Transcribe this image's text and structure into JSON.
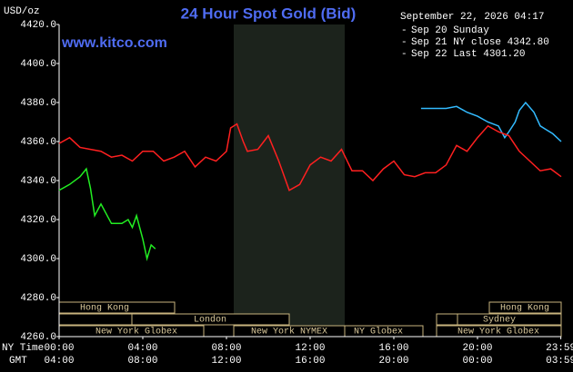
{
  "chart_data": {
    "type": "line",
    "unit": "USD/oz",
    "title": "24 Hour Spot Gold (Bid)",
    "website": "www.kitco.com",
    "timestamp": "September 22, 2026 04:17",
    "xlim": [
      0,
      24
    ],
    "xticks": [
      {
        "value": 0,
        "label": "00:00"
      },
      {
        "value": 4,
        "label": "04:00"
      },
      {
        "value": 8,
        "label": "08:00"
      },
      {
        "value": 12,
        "label": "12:00"
      },
      {
        "value": 16,
        "label": "16:00"
      },
      {
        "value": 20,
        "label": "20:00"
      },
      {
        "value": 23.983,
        "label": "23:59"
      }
    ],
    "gmt_tick_labels": [
      "04:00",
      "08:00",
      "12:00",
      "16:00",
      "20:00",
      "00:00",
      "03:59"
    ],
    "x_row_labels": [
      "NY Time",
      "GMT"
    ],
    "ylim": [
      4260,
      4420
    ],
    "yticks": [
      {
        "value": 4260,
        "label": "4260.0"
      },
      {
        "value": 4280,
        "label": "4280.0"
      },
      {
        "value": 4300,
        "label": "4300.0"
      },
      {
        "value": 4320,
        "label": "4320.0"
      },
      {
        "value": 4340,
        "label": "4340.0"
      },
      {
        "value": 4360,
        "label": "4360.0"
      },
      {
        "value": 4380,
        "label": "4380.0"
      },
      {
        "value": 4400,
        "label": "4400.0"
      },
      {
        "value": 4420,
        "label": "4420.0"
      }
    ],
    "sessions": [
      "Hong Kong",
      "London",
      "New York Globex",
      "New York NYMEX",
      "NY Globex",
      "Hong Kong",
      "Sydney",
      "New York Globex"
    ],
    "series": [
      {
        "name": "Sep 20 Sunday",
        "color": "#33bbff",
        "x": [
          17.3,
          18.5,
          19,
          19.5,
          20,
          20.5,
          21,
          21.3,
          21.5,
          21.8,
          22,
          22.3,
          22.7,
          23,
          23.3,
          23.6,
          24
        ],
        "values": [
          4377,
          4377,
          4378,
          4375,
          4373,
          4370,
          4368,
          4362,
          4365,
          4370,
          4376,
          4380,
          4375,
          4368,
          4366,
          4364,
          4360
        ]
      },
      {
        "name": "Sep 21 NY close 4342.80",
        "color": "#ff2020",
        "x": [
          0,
          0.5,
          1,
          1.5,
          2,
          2.5,
          3,
          3.5,
          4,
          4.5,
          5,
          5.5,
          6,
          6.5,
          7,
          7.5,
          8,
          8.2,
          8.5,
          8.8,
          9,
          9.5,
          10,
          10.5,
          11,
          11.5,
          12,
          12.5,
          13,
          13.5,
          14,
          14.5,
          15,
          15.5,
          16,
          16.5,
          17,
          17.5,
          18,
          18.5,
          19,
          19.5,
          20,
          20.5,
          21,
          21.5,
          22,
          22.5,
          23,
          23.5,
          24
        ],
        "values": [
          4359,
          4362,
          4357,
          4356,
          4355,
          4352,
          4353,
          4350,
          4355,
          4355,
          4350,
          4352,
          4355,
          4347,
          4352,
          4350,
          4355,
          4367,
          4369,
          4360,
          4355,
          4356,
          4363,
          4350,
          4335,
          4338,
          4348,
          4352,
          4350,
          4356,
          4345,
          4345,
          4340,
          4346,
          4350,
          4343,
          4342,
          4344,
          4344,
          4348,
          4358,
          4355,
          4362,
          4368,
          4365,
          4363,
          4355,
          4350,
          4345,
          4346,
          4342
        ]
      },
      {
        "name": "Sep 22 Last 4301.20",
        "color": "#22ee22",
        "x": [
          0,
          0.5,
          1,
          1.3,
          1.5,
          1.7,
          2,
          2.5,
          3,
          3.3,
          3.5,
          3.7,
          4,
          4.2,
          4.4,
          4.6
        ],
        "values": [
          4335,
          4338,
          4342,
          4346,
          4336,
          4322,
          4328,
          4318,
          4318,
          4320,
          4316,
          4322,
          4310,
          4300,
          4307,
          4305
        ]
      }
    ]
  }
}
